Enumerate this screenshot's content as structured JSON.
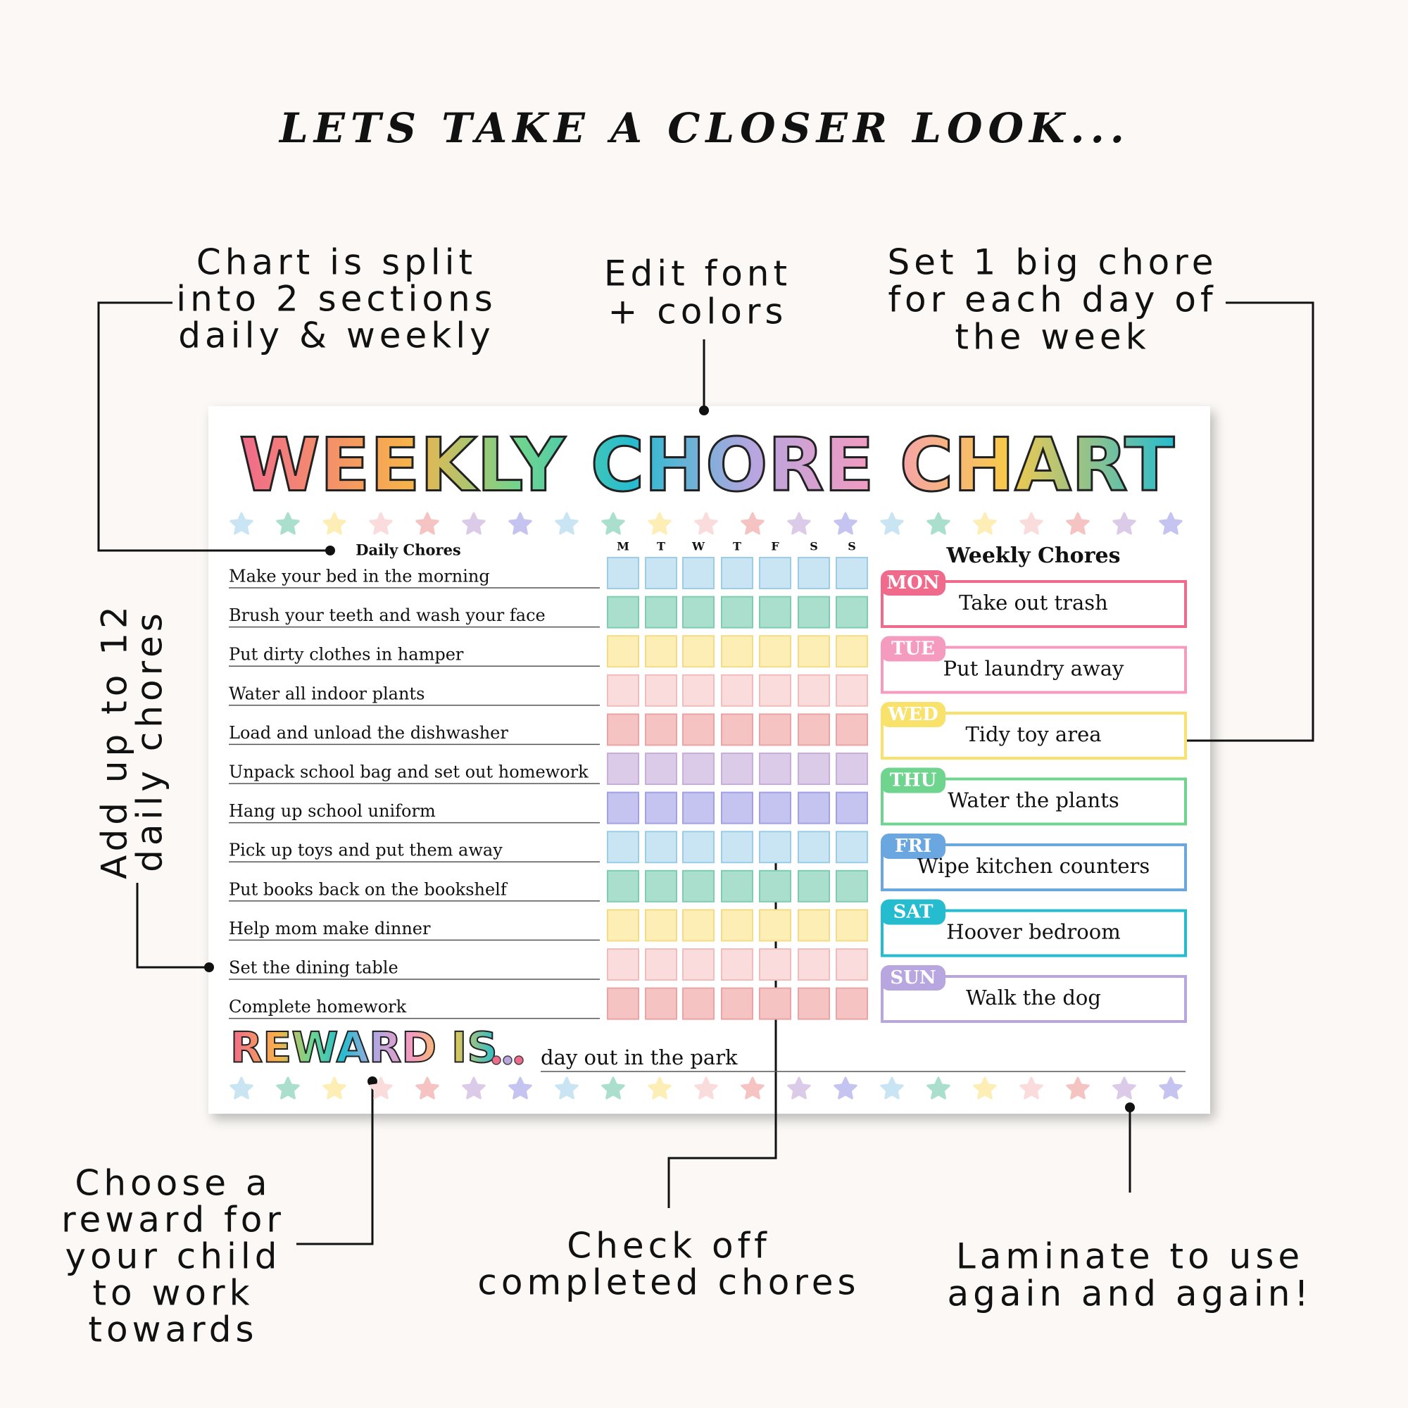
{
  "heading": "LETS TAKE A CLOSER LOOK...",
  "callouts": {
    "sections": [
      "Chart is split",
      "into 2 sections",
      "daily & weekly"
    ],
    "fonts": [
      "Edit font",
      "+ colors"
    ],
    "big_chore": [
      "Set 1 big chore",
      "for each day of",
      "the week"
    ],
    "daily": [
      "Add up to 12",
      "daily chores"
    ],
    "reward": [
      "Choose a",
      "reward for",
      "your child",
      "to work",
      "towards"
    ],
    "check": [
      "Check off",
      "completed chores"
    ],
    "laminate": [
      "Laminate to use",
      "again and again!"
    ]
  },
  "chart": {
    "title": "WEEKLY CHORE CHART",
    "daily_title": "Daily Chores",
    "days": [
      "M",
      "T",
      "W",
      "T",
      "F",
      "S",
      "S"
    ],
    "daily_chores": [
      "Make your bed in the morning",
      "Brush your teeth and wash your face",
      "Put dirty clothes in hamper",
      "Water all indoor plants",
      "Load and unload the dishwasher",
      "Unpack school bag and set out homework",
      "Hang up school uniform",
      "Pick up toys and put them away",
      "Put books back on the bookshelf",
      "Help mom make dinner",
      "Set the dining table",
      "Complete homework"
    ],
    "weekly_title": "Weekly Chores",
    "weekly": [
      {
        "day": "MON",
        "chore": "Take out trash"
      },
      {
        "day": "TUE",
        "chore": "Put laundry away"
      },
      {
        "day": "WED",
        "chore": "Tidy toy area"
      },
      {
        "day": "THU",
        "chore": "Water the plants"
      },
      {
        "day": "FRI",
        "chore": "Wipe kitchen counters"
      },
      {
        "day": "SAT",
        "chore": "Hoover bedroom"
      },
      {
        "day": "SUN",
        "chore": "Walk the dog"
      }
    ],
    "reward_label": "REWARD IS",
    "reward": "day out in the park"
  }
}
